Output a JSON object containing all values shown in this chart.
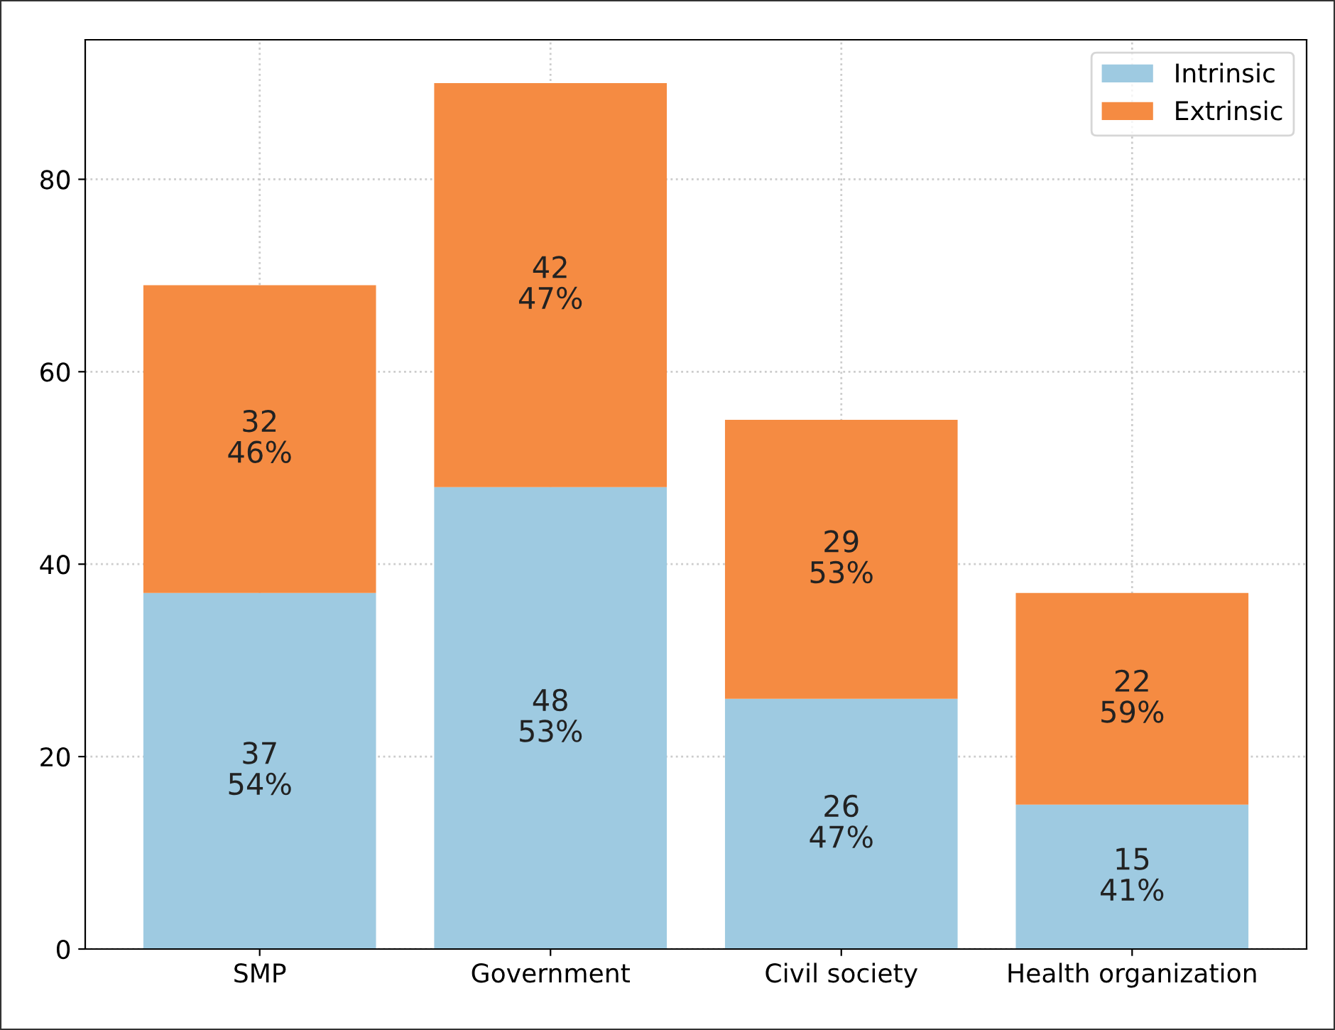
{
  "chart_data": {
    "type": "bar",
    "stacked": true,
    "categories": [
      "SMP",
      "Government",
      "Civil society",
      "Health organization"
    ],
    "series": [
      {
        "name": "Intrinsic",
        "color": "#9ecae1",
        "values": [
          37,
          48,
          26,
          15
        ],
        "value_labels": [
          "37\n54%",
          "48\n53%",
          "26\n47%",
          "15\n41%"
        ]
      },
      {
        "name": "Extrinsic",
        "color": "#f58b42",
        "values": [
          32,
          42,
          29,
          22
        ],
        "value_labels": [
          "32\n46%",
          "42\n47%",
          "29\n53%",
          "22\n59%"
        ]
      }
    ],
    "ylim": [
      0,
      94.5
    ],
    "yticks": [
      0,
      20,
      40,
      60,
      80
    ],
    "grid": true,
    "legend": "top right"
  }
}
